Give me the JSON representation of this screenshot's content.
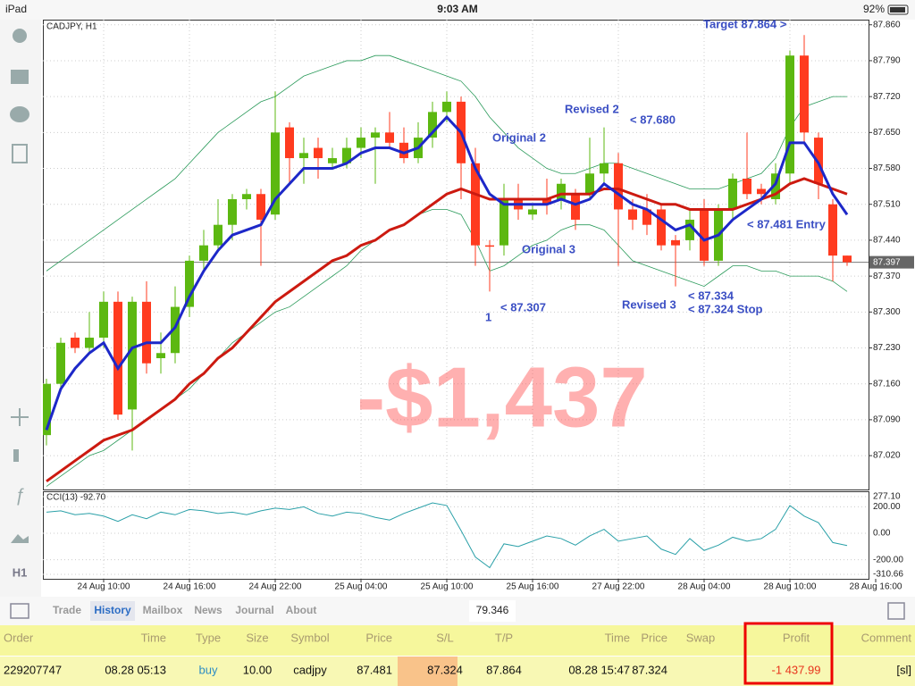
{
  "status_bar": {
    "device": "iPad",
    "time": "9:03 AM",
    "battery": "92%"
  },
  "chart_data": {
    "type": "candlestick",
    "title": "CADJPY, H1",
    "open": [
      87.06,
      87.16,
      87.25,
      87.23,
      87.25,
      87.32,
      87.11,
      87.32,
      87.21,
      87.22,
      87.31,
      87.4,
      87.43,
      87.47,
      87.52,
      87.53,
      87.49,
      87.66,
      87.6,
      87.62,
      87.59,
      87.59,
      87.62,
      87.64,
      87.65,
      87.63,
      87.6,
      87.64,
      87.69,
      87.71,
      87.59,
      87.43,
      87.43,
      87.52,
      87.49,
      87.52,
      87.52,
      87.53,
      87.53,
      87.57,
      87.59,
      87.5,
      87.5,
      87.5,
      87.44,
      87.44,
      87.5,
      87.4,
      87.5,
      87.56,
      87.54,
      87.52,
      87.57,
      87.8,
      87.64,
      87.51,
      87.41
    ],
    "high": [
      87.17,
      87.25,
      87.26,
      87.3,
      87.34,
      87.34,
      87.33,
      87.36,
      87.26,
      87.35,
      87.41,
      87.46,
      87.52,
      87.53,
      87.54,
      87.54,
      87.73,
      87.67,
      87.64,
      87.64,
      87.62,
      87.64,
      87.66,
      87.66,
      87.69,
      87.66,
      87.67,
      87.71,
      87.73,
      87.72,
      87.62,
      87.44,
      87.55,
      87.55,
      87.51,
      87.56,
      87.56,
      87.54,
      87.64,
      87.66,
      87.61,
      87.52,
      87.53,
      87.51,
      87.45,
      87.5,
      87.52,
      87.51,
      87.57,
      87.65,
      87.55,
      87.59,
      87.81,
      87.84,
      87.65,
      87.52,
      87.41
    ],
    "low": [
      87.04,
      87.15,
      87.22,
      87.22,
      87.23,
      87.09,
      87.03,
      87.18,
      87.18,
      87.2,
      87.29,
      87.38,
      87.42,
      87.44,
      87.5,
      87.39,
      87.48,
      87.55,
      87.55,
      87.56,
      87.58,
      87.58,
      87.6,
      87.55,
      87.62,
      87.59,
      87.59,
      87.62,
      87.67,
      87.52,
      87.39,
      87.34,
      87.41,
      87.48,
      87.48,
      87.49,
      87.5,
      87.46,
      87.52,
      87.55,
      87.39,
      87.46,
      87.45,
      87.42,
      87.35,
      87.42,
      87.39,
      87.39,
      87.48,
      87.52,
      87.51,
      87.51,
      87.55,
      87.63,
      87.52,
      87.36,
      87.39
    ],
    "close": [
      87.16,
      87.24,
      87.23,
      87.25,
      87.32,
      87.1,
      87.32,
      87.2,
      87.22,
      87.31,
      87.4,
      87.43,
      87.47,
      87.52,
      87.53,
      87.48,
      87.65,
      87.6,
      87.61,
      87.6,
      87.6,
      87.62,
      87.64,
      87.65,
      87.63,
      87.6,
      87.64,
      87.69,
      87.71,
      87.59,
      87.43,
      87.43,
      87.52,
      87.5,
      87.5,
      87.51,
      87.55,
      87.48,
      87.57,
      87.59,
      87.5,
      87.48,
      87.47,
      87.43,
      87.43,
      87.48,
      87.4,
      87.5,
      87.56,
      87.53,
      87.53,
      87.57,
      87.8,
      87.65,
      87.55,
      87.41,
      87.397
    ],
    "up_color": "#5cb811",
    "down_color": "#ff3b1f",
    "ma_fast": {
      "color": "#1d28c8",
      "values": [
        87.07,
        87.15,
        87.19,
        87.22,
        87.24,
        87.19,
        87.23,
        87.24,
        87.24,
        87.27,
        87.33,
        87.38,
        87.42,
        87.45,
        87.46,
        87.47,
        87.52,
        87.55,
        87.58,
        87.58,
        87.58,
        87.59,
        87.61,
        87.62,
        87.62,
        87.61,
        87.62,
        87.65,
        87.68,
        87.65,
        87.58,
        87.53,
        87.51,
        87.51,
        87.51,
        87.51,
        87.52,
        87.51,
        87.52,
        87.55,
        87.53,
        87.51,
        87.5,
        87.48,
        87.46,
        87.47,
        87.44,
        87.45,
        87.48,
        87.5,
        87.52,
        87.55,
        87.63,
        87.63,
        87.59,
        87.53,
        87.49
      ]
    },
    "ma_slow": {
      "color": "#cc1a10",
      "values": [
        86.97,
        86.99,
        87.01,
        87.03,
        87.05,
        87.06,
        87.07,
        87.09,
        87.11,
        87.13,
        87.16,
        87.18,
        87.21,
        87.23,
        87.26,
        87.29,
        87.32,
        87.34,
        87.36,
        87.38,
        87.4,
        87.41,
        87.43,
        87.44,
        87.46,
        87.47,
        87.49,
        87.51,
        87.53,
        87.54,
        87.53,
        87.52,
        87.52,
        87.52,
        87.52,
        87.52,
        87.53,
        87.53,
        87.53,
        87.54,
        87.54,
        87.53,
        87.52,
        87.51,
        87.51,
        87.5,
        87.5,
        87.5,
        87.5,
        87.51,
        87.52,
        87.53,
        87.55,
        87.56,
        87.55,
        87.54,
        87.53
      ]
    },
    "bands": {
      "color": "#2a9a5a",
      "upper": [
        87.38,
        87.4,
        87.42,
        87.44,
        87.46,
        87.48,
        87.5,
        87.52,
        87.54,
        87.56,
        87.59,
        87.62,
        87.65,
        87.67,
        87.69,
        87.71,
        87.72,
        87.74,
        87.76,
        87.77,
        87.78,
        87.79,
        87.79,
        87.8,
        87.8,
        87.79,
        87.78,
        87.77,
        87.76,
        87.75,
        87.72,
        87.68,
        87.65,
        87.62,
        87.6,
        87.58,
        87.57,
        87.57,
        87.58,
        87.59,
        87.59,
        87.58,
        87.57,
        87.56,
        87.55,
        87.54,
        87.54,
        87.54,
        87.55,
        87.56,
        87.57,
        87.6,
        87.66,
        87.7,
        87.71,
        87.72,
        87.72
      ],
      "lower": [
        86.96,
        86.98,
        87.0,
        87.02,
        87.03,
        87.05,
        87.07,
        87.09,
        87.11,
        87.13,
        87.15,
        87.18,
        87.21,
        87.24,
        87.26,
        87.28,
        87.3,
        87.31,
        87.33,
        87.35,
        87.37,
        87.39,
        87.42,
        87.44,
        87.46,
        87.47,
        87.49,
        87.5,
        87.5,
        87.49,
        87.44,
        87.38,
        87.39,
        87.41,
        87.43,
        87.44,
        87.46,
        87.47,
        87.47,
        87.46,
        87.43,
        87.4,
        87.39,
        87.38,
        87.37,
        87.36,
        87.35,
        87.37,
        87.39,
        87.39,
        87.38,
        87.38,
        87.37,
        87.37,
        87.37,
        87.36,
        87.34
      ]
    },
    "ylim": [
      86.954,
      87.87
    ],
    "yticks": [
      {
        "value": 87.86,
        "label": "87.860"
      },
      {
        "value": 87.79,
        "label": "87.790"
      },
      {
        "value": 87.72,
        "label": "87.720"
      },
      {
        "value": 87.65,
        "label": "87.650"
      },
      {
        "value": 87.58,
        "label": "87.580"
      },
      {
        "value": 87.51,
        "label": "87.510"
      },
      {
        "value": 87.44,
        "label": "87.440"
      },
      {
        "value": 87.37,
        "label": "87.370"
      },
      {
        "value": 87.3,
        "label": "87.300"
      },
      {
        "value": 87.23,
        "label": "87.230"
      },
      {
        "value": 87.16,
        "label": "87.160"
      },
      {
        "value": 87.09,
        "label": "87.090"
      },
      {
        "value": 87.02,
        "label": "87.020"
      }
    ],
    "xticks": [
      {
        "value": 4,
        "label": "24 Aug 10:00"
      },
      {
        "value": 10,
        "label": "24 Aug 16:00"
      },
      {
        "value": 16,
        "label": "24 Aug 22:00"
      },
      {
        "value": 22,
        "label": "25 Aug 04:00"
      },
      {
        "value": 28,
        "label": "25 Aug 10:00"
      },
      {
        "value": 34,
        "label": "25 Aug 16:00"
      },
      {
        "value": 40,
        "label": "27 Aug 22:00"
      },
      {
        "value": 46,
        "label": "28 Aug 04:00"
      },
      {
        "value": 52,
        "label": "28 Aug 10:00"
      },
      {
        "value": 58,
        "label": "28 Aug 16:00"
      }
    ],
    "grid": true,
    "current_price": {
      "value": 87.397,
      "label": "87.397"
    },
    "annotations": [
      "Target 87.864 >",
      "Revised 2",
      "< 87.680",
      "Original 2",
      "< 87.481 Entry",
      "Original 3",
      "< 87.334",
      "Revised 3",
      "< 87.324 Stop",
      "1",
      "< 87.307"
    ],
    "watermark": "-$1,437"
  },
  "indicator": {
    "type": "line",
    "title": "CCI(13) -92.70",
    "color": "#2aa0a8",
    "values": [
      160,
      170,
      140,
      150,
      130,
      90,
      140,
      110,
      160,
      140,
      180,
      170,
      150,
      160,
      140,
      170,
      190,
      180,
      200,
      150,
      130,
      160,
      150,
      120,
      100,
      150,
      190,
      230,
      210,
      20,
      -180,
      -260,
      -80,
      -100,
      -60,
      -20,
      -40,
      -90,
      -20,
      30,
      -60,
      -40,
      -20,
      -120,
      -160,
      -40,
      -130,
      -90,
      -30,
      -60,
      -40,
      30,
      210,
      130,
      80,
      -70,
      -92.7
    ],
    "ylim": [
      -310.66,
      277.1
    ],
    "yticks": [
      {
        "value": 277.1,
        "label": "277.10"
      },
      {
        "value": 200,
        "label": "200.00"
      },
      {
        "value": 0,
        "label": "0.00"
      },
      {
        "value": -200,
        "label": "-200.00"
      },
      {
        "value": -310.66,
        "label": "-310.66"
      }
    ]
  },
  "toolbar": {
    "timeframe": "H1"
  },
  "tabs": {
    "items": [
      "Trade",
      "History",
      "Mailbox",
      "News",
      "Journal",
      "About"
    ],
    "active": 1,
    "field": "79.346"
  },
  "table": {
    "columns": [
      "Order",
      "Time",
      "Type",
      "Size",
      "Symbol",
      "Price",
      "S/L",
      "T/P",
      "Time",
      "Price",
      "Swap",
      "Profit",
      "Comment"
    ],
    "rows": [
      [
        "229207747",
        "08.28 05:13",
        "buy",
        "10.00",
        "cadjpy",
        "87.481",
        "87.324",
        "87.864",
        "08.28 15:47",
        "87.324",
        null,
        "-1 437.99",
        "[sl]"
      ]
    ]
  }
}
